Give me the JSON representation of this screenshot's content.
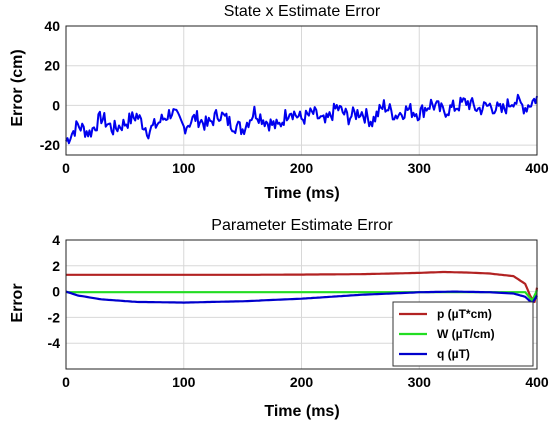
{
  "chart_data": [
    {
      "type": "line",
      "title": "State x Estimate Error",
      "xlabel": "Time (ms)",
      "ylabel": "Error (cm)",
      "xlim": [
        0,
        400
      ],
      "ylim": [
        -25,
        40
      ],
      "xticks": [
        0,
        100,
        200,
        300,
        400
      ],
      "yticks": [
        -20,
        0,
        20,
        40
      ],
      "grid": true,
      "series": [
        {
          "color": "#0000ee",
          "x": [
            0,
            10,
            20,
            30,
            40,
            50,
            60,
            70,
            80,
            90,
            100,
            110,
            120,
            130,
            140,
            150,
            160,
            170,
            180,
            190,
            200,
            210,
            220,
            230,
            240,
            250,
            260,
            270,
            280,
            290,
            300,
            310,
            320,
            330,
            340,
            350,
            360,
            370,
            380,
            390,
            400
          ],
          "y": [
            -18,
            -10,
            -14,
            -6,
            -12,
            -9,
            -5,
            -13,
            -8,
            -3,
            -11,
            -6,
            -10,
            -4,
            -9,
            -12,
            -3,
            -8,
            -11,
            -2,
            -7,
            -4,
            -9,
            -1,
            -6,
            -3,
            -8,
            0,
            -5,
            -2,
            -4,
            1,
            -3,
            -1,
            2,
            -2,
            0,
            -3,
            3,
            -1,
            4
          ],
          "noise": 4
        }
      ]
    },
    {
      "type": "line",
      "title": "Parameter Estimate Error",
      "xlabel": "Time (ms)",
      "ylabel": "Error",
      "xlim": [
        0,
        400
      ],
      "ylim": [
        -6,
        4
      ],
      "xticks": [
        0,
        100,
        200,
        300,
        400
      ],
      "yticks": [
        -4,
        -2,
        0,
        2,
        4
      ],
      "grid": true,
      "legend": "bottom-right",
      "series": [
        {
          "name": "p (µT*cm)",
          "color": "#b22222",
          "x": [
            0,
            50,
            100,
            150,
            200,
            250,
            300,
            320,
            340,
            360,
            380,
            390,
            395,
            398,
            400
          ],
          "y": [
            1.3,
            1.3,
            1.3,
            1.3,
            1.32,
            1.35,
            1.45,
            1.52,
            1.48,
            1.4,
            1.2,
            0.6,
            -0.5,
            -0.8,
            0.3
          ]
        },
        {
          "name": "W (µT/cm)",
          "color": "#22dd22",
          "x": [
            0,
            100,
            200,
            300,
            390,
            396,
            400
          ],
          "y": [
            -0.05,
            -0.05,
            -0.05,
            -0.05,
            -0.05,
            -0.7,
            0.1
          ]
        },
        {
          "name": "q (µT)",
          "color": "#0000cc",
          "x": [
            0,
            10,
            30,
            60,
            100,
            150,
            200,
            250,
            300,
            330,
            360,
            380,
            390,
            396,
            400
          ],
          "y": [
            0,
            -0.3,
            -0.6,
            -0.8,
            -0.85,
            -0.75,
            -0.55,
            -0.25,
            -0.05,
            0.0,
            -0.05,
            -0.15,
            -0.4,
            -0.9,
            -0.3
          ]
        }
      ]
    }
  ]
}
